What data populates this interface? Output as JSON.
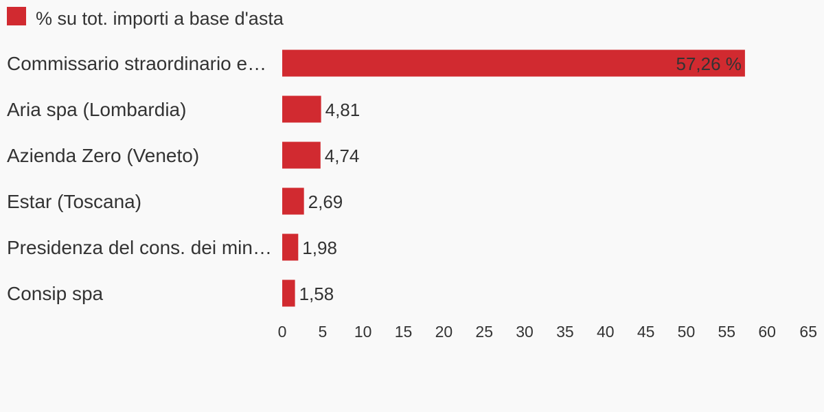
{
  "chart_data": {
    "type": "bar",
    "orientation": "horizontal",
    "series": [
      {
        "name": "% su tot. importi a base d'asta",
        "color": "#d12a30",
        "values": [
          57.26,
          4.81,
          4.74,
          2.69,
          1.98,
          1.58
        ]
      }
    ],
    "categories": [
      "Commissario straordinario e…",
      "Aria spa (Lombardia)",
      "Azienda Zero (Veneto)",
      "Estar (Toscana)",
      "Presidenza del cons. dei min…",
      "Consip spa"
    ],
    "data_labels": [
      "57,26 %",
      "4,81",
      "4,74",
      "2,69",
      "1,98",
      "1,58"
    ],
    "xlim": [
      0,
      65
    ],
    "x_ticks": [
      "0",
      "5",
      "10",
      "15",
      "20",
      "25",
      "30",
      "35",
      "40",
      "45",
      "50",
      "55",
      "60",
      "65"
    ],
    "grid": false,
    "legend_position": "top-left",
    "title": "",
    "xlabel": "",
    "ylabel": ""
  }
}
